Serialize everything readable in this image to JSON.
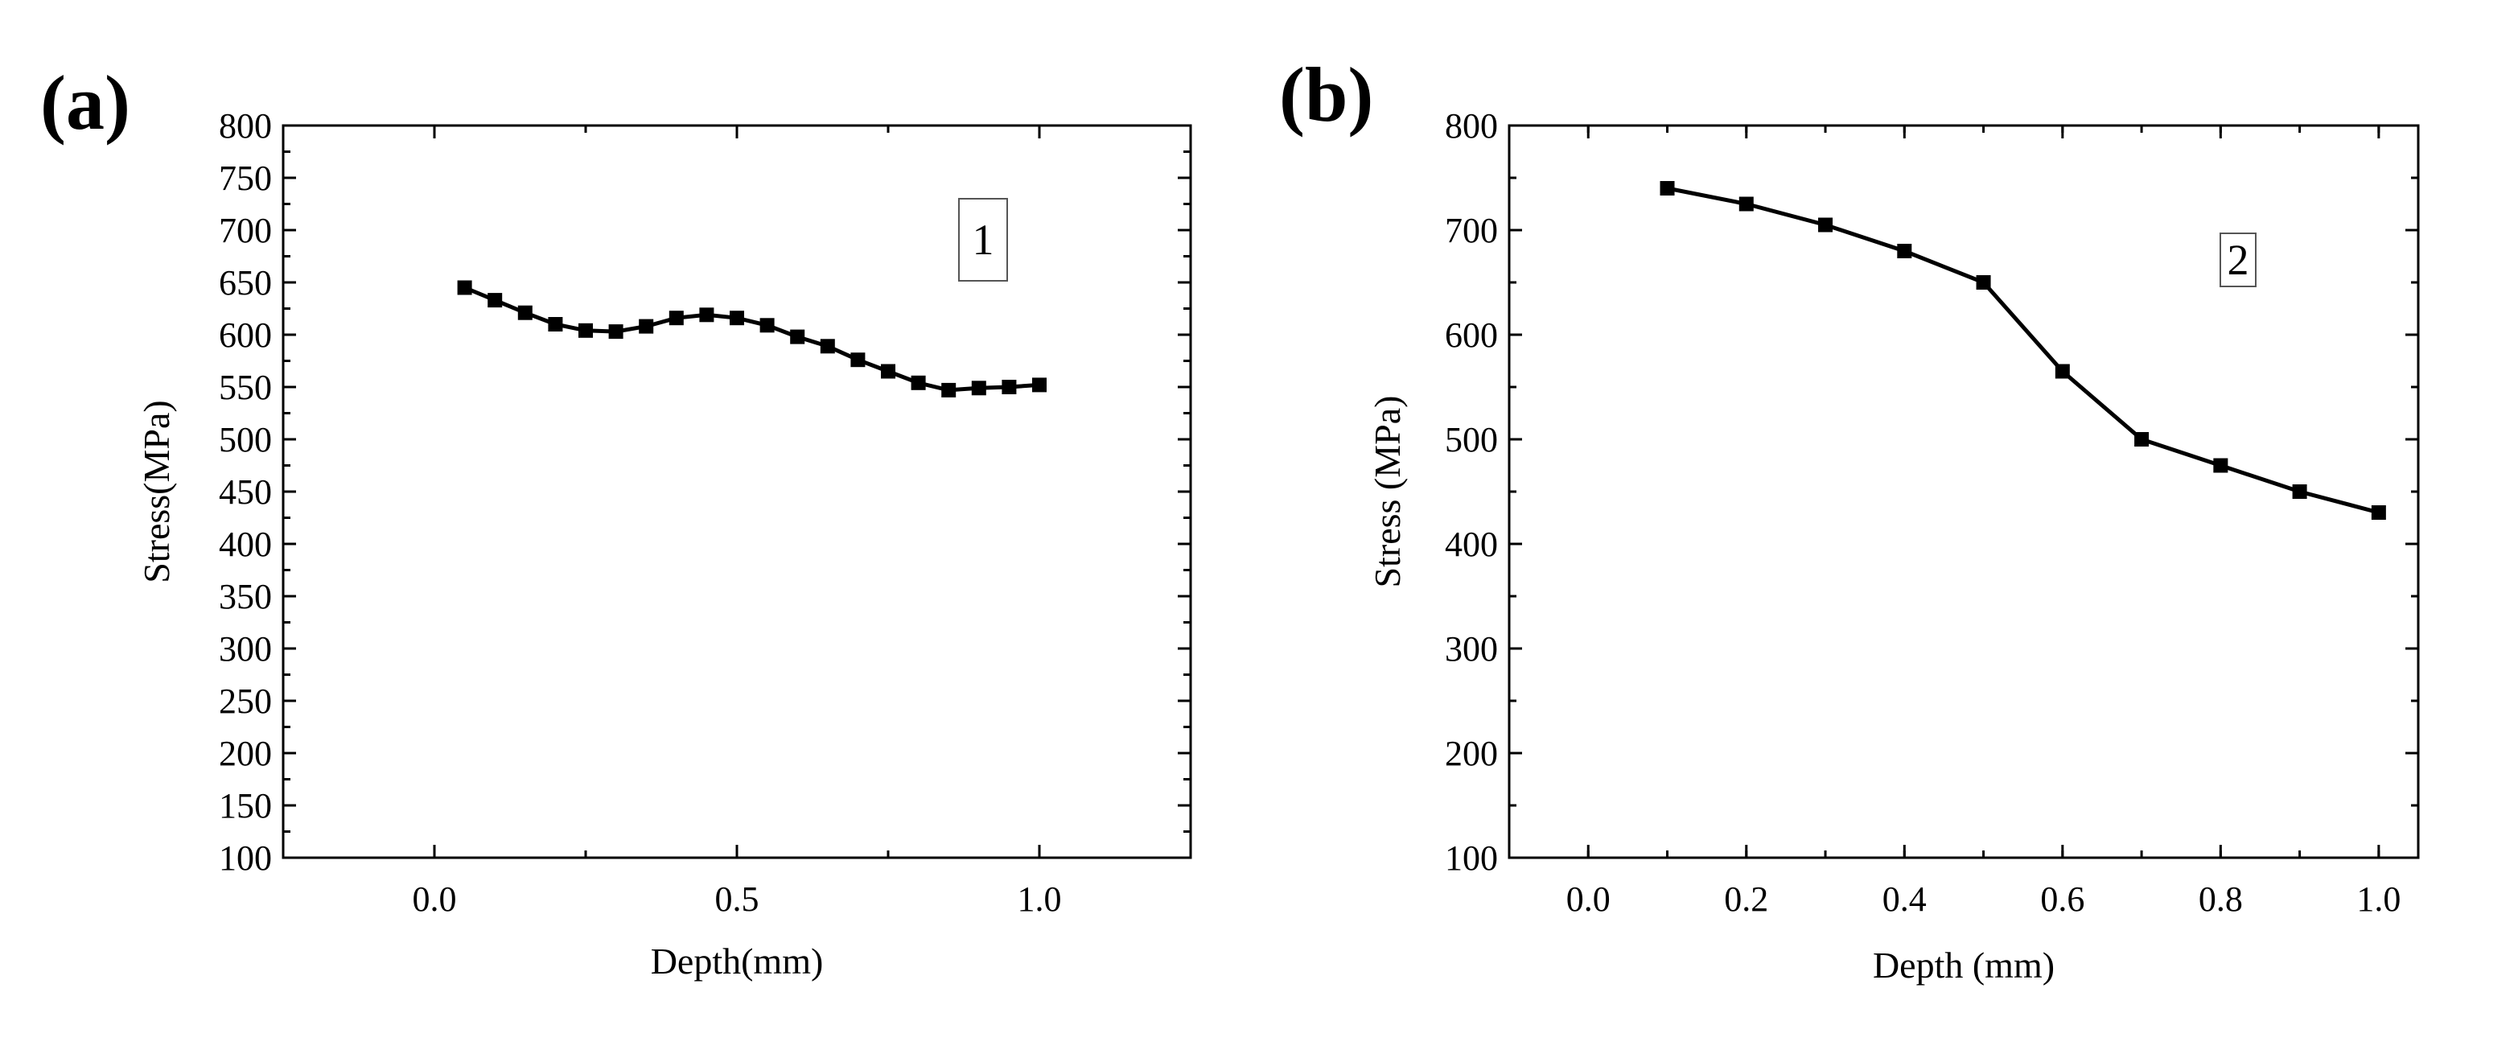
{
  "chart_data": [
    {
      "type": "line",
      "panel_label": "(a)",
      "title": "",
      "xlabel": "Depth(mm)",
      "ylabel": "Stress(MPa)",
      "xlim": [
        -0.25,
        1.25
      ],
      "ylim": [
        100,
        800
      ],
      "xticks": [
        0.0,
        0.5,
        1.0
      ],
      "xtick_labels": [
        "0.0",
        "0.5",
        "1.0"
      ],
      "yticks": [
        100,
        150,
        200,
        250,
        300,
        350,
        400,
        450,
        500,
        550,
        600,
        650,
        700,
        750,
        800
      ],
      "ytick_labels": [
        "100",
        "150",
        "200",
        "250",
        "300",
        "350",
        "400",
        "450",
        "500",
        "550",
        "600",
        "650",
        "700",
        "750",
        "800"
      ],
      "grid": false,
      "annotation": "1",
      "series": [
        {
          "name": "1",
          "marker": "square",
          "x": [
            0.05,
            0.1,
            0.15,
            0.2,
            0.25,
            0.3,
            0.35,
            0.4,
            0.45,
            0.5,
            0.55,
            0.6,
            0.65,
            0.7,
            0.75,
            0.8,
            0.85,
            0.9,
            0.95,
            1.0
          ],
          "y": [
            645,
            633,
            621,
            610,
            604,
            603,
            608,
            616,
            619,
            616,
            609,
            598,
            589,
            576,
            565,
            554,
            547,
            549,
            550,
            552
          ]
        }
      ]
    },
    {
      "type": "line",
      "panel_label": "(b)",
      "title": "",
      "xlabel": "Depth (mm)",
      "ylabel": "Stress (MPa)",
      "xlim": [
        -0.1,
        1.05
      ],
      "ylim": [
        100,
        800
      ],
      "xticks": [
        0.0,
        0.2,
        0.4,
        0.6,
        0.8,
        1.0
      ],
      "xtick_labels": [
        "0.0",
        "0.2",
        "0.4",
        "0.6",
        "0.8",
        "1.0"
      ],
      "yticks": [
        100,
        200,
        300,
        400,
        500,
        600,
        700,
        800
      ],
      "ytick_labels": [
        "100",
        "200",
        "300",
        "400",
        "500",
        "600",
        "700",
        "800"
      ],
      "grid": false,
      "annotation": "2",
      "series": [
        {
          "name": "2",
          "marker": "square",
          "x": [
            0.1,
            0.2,
            0.3,
            0.4,
            0.5,
            0.6,
            0.7,
            0.8,
            0.9,
            1.0
          ],
          "y": [
            740,
            725,
            705,
            680,
            650,
            565,
            500,
            475,
            450,
            430
          ]
        }
      ]
    }
  ]
}
